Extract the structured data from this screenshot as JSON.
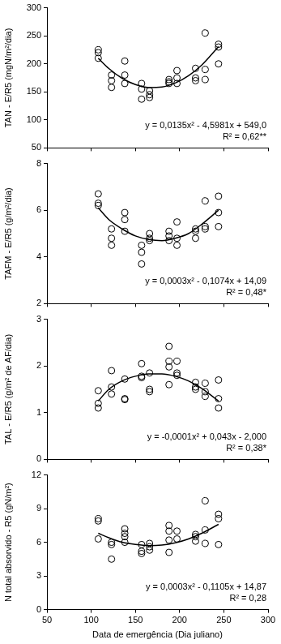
{
  "chart_data": [
    {
      "type": "scatter",
      "y_label": "TAN - E/R5 (mgN/m²/dia)",
      "color": "#000000",
      "grid": false,
      "tick_labels": "y",
      "xlim": [
        50,
        300
      ],
      "xticks": [
        50,
        100,
        150,
        200,
        250,
        300
      ],
      "ylim": [
        50,
        300
      ],
      "yticks": [
        50,
        100,
        150,
        200,
        250,
        300
      ],
      "annotations": [
        "y = 0,0135x² - 4,5981x + 549,0",
        "R² = 0,62**"
      ],
      "series": [
        {
          "type": "scatter",
          "marker": "circle",
          "x": [
            108,
            108,
            108,
            123,
            123,
            123,
            138,
            138,
            138,
            157,
            157,
            157,
            166,
            166,
            166,
            188,
            188,
            188,
            197,
            197,
            197,
            218,
            218,
            218,
            229,
            229,
            229,
            244,
            244,
            244
          ],
          "values": [
            225,
            220,
            210,
            180,
            170,
            158,
            205,
            180,
            165,
            165,
            155,
            137,
            152,
            145,
            140,
            172,
            168,
            165,
            188,
            175,
            165,
            192,
            175,
            170,
            255,
            190,
            172,
            235,
            230,
            200
          ]
        },
        {
          "type": "line",
          "marker": "none",
          "line_style": "solid",
          "x": [
            108,
            120,
            135,
            150,
            165,
            180,
            195,
            210,
            225,
            244
          ],
          "values": [
            209.9,
            191.6,
            174.3,
            163.0,
            157.8,
            158.7,
            165.7,
            178.8,
            197.9,
            230.8
          ]
        }
      ]
    },
    {
      "type": "scatter",
      "y_label": "TAFM - E/R5 (g/m²/dia)",
      "color": "#000000",
      "grid": false,
      "tick_labels": "y",
      "xlim": [
        50,
        300
      ],
      "xticks": [
        50,
        100,
        150,
        200,
        250,
        300
      ],
      "ylim": [
        2,
        8
      ],
      "yticks": [
        2,
        4,
        6,
        8
      ],
      "annotations": [
        "y = 0,0003x² - 0,1074x + 14,09",
        "R² = 0,48*"
      ],
      "series": [
        {
          "type": "scatter",
          "marker": "circle",
          "x": [
            108,
            108,
            108,
            123,
            123,
            123,
            138,
            138,
            138,
            157,
            157,
            157,
            166,
            166,
            166,
            188,
            188,
            188,
            197,
            197,
            197,
            218,
            218,
            218,
            229,
            229,
            229,
            244,
            244,
            244
          ],
          "values": [
            6.7,
            6.3,
            6.2,
            5.2,
            4.8,
            4.5,
            5.9,
            5.6,
            5.1,
            4.5,
            4.2,
            3.7,
            5.0,
            4.8,
            4.7,
            5.1,
            4.9,
            4.7,
            5.5,
            4.8,
            4.5,
            5.2,
            5.1,
            4.8,
            6.4,
            5.3,
            5.2,
            6.6,
            5.9,
            5.3
          ]
        },
        {
          "type": "line",
          "marker": "none",
          "line_style": "solid",
          "x": [
            108,
            120,
            135,
            150,
            165,
            180,
            195,
            210,
            225,
            244
          ],
          "values": [
            6.1,
            5.6,
            5.2,
            4.9,
            4.75,
            4.7,
            4.8,
            5.0,
            5.4,
            6.0
          ]
        }
      ]
    },
    {
      "type": "scatter",
      "y_label": "TAL - E/R5 (g/m² de AF/dia)",
      "color": "#000000",
      "grid": false,
      "tick_labels": "y",
      "xlim": [
        50,
        300
      ],
      "xticks": [
        50,
        100,
        150,
        200,
        250,
        300
      ],
      "ylim": [
        0,
        3
      ],
      "yticks": [
        0,
        1,
        2,
        3
      ],
      "annotations": [
        "y = -0,0001x² + 0,043x - 2,000",
        "R² = 0,38*"
      ],
      "series": [
        {
          "type": "scatter",
          "marker": "circle",
          "x": [
            108,
            108,
            108,
            123,
            123,
            123,
            138,
            138,
            138,
            157,
            157,
            157,
            166,
            166,
            166,
            188,
            188,
            188,
            188,
            197,
            197,
            197,
            218,
            218,
            218,
            229,
            229,
            229,
            244,
            244,
            244
          ],
          "values": [
            1.47,
            1.2,
            1.1,
            1.9,
            1.55,
            1.4,
            1.72,
            1.3,
            1.28,
            2.05,
            1.78,
            1.75,
            1.85,
            1.5,
            1.45,
            2.42,
            2.1,
            1.98,
            1.6,
            2.1,
            1.85,
            1.8,
            1.65,
            1.55,
            1.5,
            1.63,
            1.45,
            1.35,
            1.7,
            1.3,
            1.1
          ]
        },
        {
          "type": "line",
          "marker": "none",
          "line_style": "solid",
          "x": [
            108,
            120,
            135,
            150,
            165,
            180,
            195,
            210,
            225,
            244
          ],
          "values": [
            1.25,
            1.5,
            1.68,
            1.78,
            1.83,
            1.83,
            1.78,
            1.68,
            1.52,
            1.25
          ]
        }
      ]
    },
    {
      "type": "scatter",
      "y_label": "N total absorvido - R5 (gN/m²)",
      "x_label": "Data de emergência (Dia juliano)",
      "color": "#000000",
      "grid": false,
      "tick_labels": true,
      "xlim": [
        50,
        300
      ],
      "xticks": [
        50,
        100,
        150,
        200,
        250,
        300
      ],
      "ylim": [
        0,
        12
      ],
      "yticks": [
        0,
        3,
        6,
        9,
        12
      ],
      "annotations": [
        "y = 0,0003x² - 0,1105x + 14,87",
        "R² = 0,28"
      ],
      "series": [
        {
          "type": "scatter",
          "marker": "circle",
          "x": [
            108,
            108,
            108,
            123,
            123,
            123,
            138,
            138,
            138,
            138,
            157,
            157,
            157,
            166,
            166,
            166,
            188,
            188,
            188,
            188,
            197,
            197,
            218,
            218,
            218,
            229,
            229,
            229,
            244,
            244,
            244
          ],
          "values": [
            8.1,
            7.9,
            6.3,
            6.0,
            5.8,
            4.5,
            7.2,
            6.8,
            6.5,
            6.0,
            5.8,
            5.2,
            5.0,
            5.9,
            5.6,
            5.3,
            7.5,
            7.0,
            6.2,
            5.1,
            7.0,
            6.3,
            6.7,
            6.5,
            6.1,
            9.7,
            7.1,
            5.9,
            8.5,
            8.1,
            5.8
          ]
        },
        {
          "type": "line",
          "marker": "none",
          "line_style": "solid",
          "x": [
            108,
            120,
            135,
            150,
            165,
            180,
            195,
            210,
            225,
            244
          ],
          "values": [
            6.8,
            6.4,
            6.0,
            5.8,
            5.7,
            5.75,
            5.95,
            6.3,
            6.8,
            7.6
          ]
        }
      ]
    }
  ]
}
